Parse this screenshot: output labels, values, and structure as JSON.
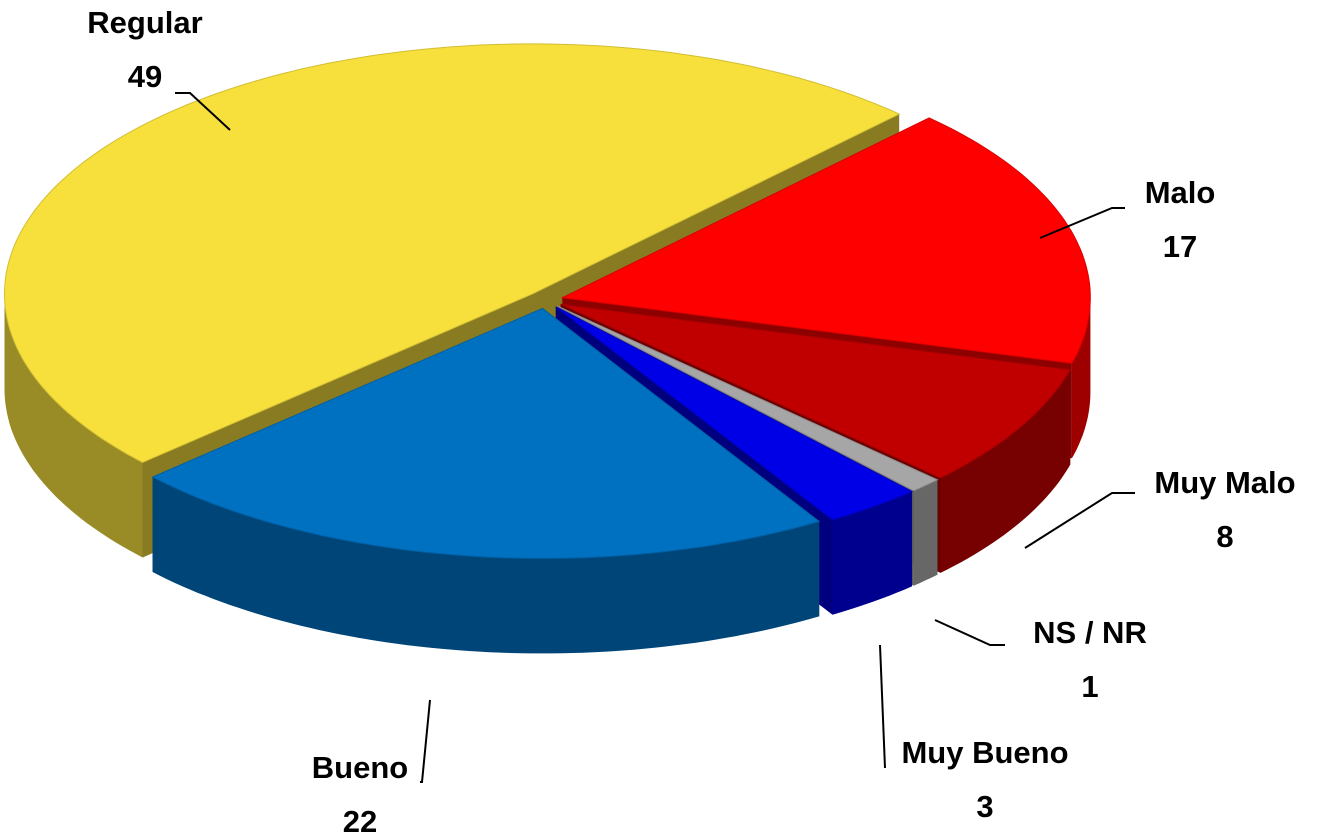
{
  "chart_data": {
    "type": "pie3d",
    "categories": [
      "Malo",
      "Muy Malo",
      "NS / NR",
      "Muy Bueno",
      "Bueno",
      "Regular"
    ],
    "values": [
      17,
      8,
      1,
      3,
      22,
      49
    ],
    "colors": [
      "#ff0000",
      "#c00000",
      "#a6a6a6",
      "#0000e6",
      "#0070c0",
      "#f7e03c"
    ]
  }
}
